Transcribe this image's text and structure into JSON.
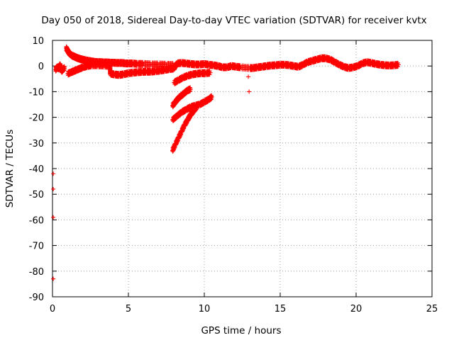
{
  "chart_data": {
    "type": "scatter",
    "title": "Day 050 of 2018, Sidereal Day-to-day VTEC variation (SDTVAR) for receiver kvtx",
    "xlabel": "GPS time / hours",
    "ylabel": "SDTVAR / TECUs",
    "xlim": [
      0,
      25
    ],
    "ylim": [
      -90,
      10
    ],
    "xticks": [
      0,
      5,
      10,
      15,
      20,
      25
    ],
    "yticks": [
      10,
      0,
      -10,
      -20,
      -30,
      -40,
      -50,
      -60,
      -70,
      -80,
      -90
    ],
    "grid": true,
    "marker": "plus",
    "color": "#ff0000",
    "series": [
      {
        "values": [
          [
            0.2,
            -1.5
          ],
          [
            0.3,
            -0.5
          ],
          [
            0.4,
            -1.0
          ],
          [
            0.5,
            0.5
          ],
          [
            0.6,
            -2.0
          ],
          [
            0.7,
            -1.2
          ],
          [
            0.8,
            -0.8
          ],
          [
            0.9,
            7.0
          ],
          [
            1.0,
            6.0
          ],
          [
            1.1,
            5.0
          ],
          [
            1.2,
            4.5
          ],
          [
            1.3,
            4.0
          ],
          [
            1.4,
            3.8
          ],
          [
            1.5,
            3.5
          ],
          [
            1.6,
            3.2
          ],
          [
            1.7,
            3.0
          ],
          [
            1.8,
            2.8
          ],
          [
            1.9,
            2.6
          ],
          [
            2.0,
            2.5
          ],
          [
            2.2,
            2.2
          ],
          [
            2.4,
            2.0
          ],
          [
            2.6,
            1.8
          ],
          [
            2.8,
            1.6
          ],
          [
            3.0,
            1.5
          ],
          [
            3.2,
            1.5
          ],
          [
            3.4,
            1.4
          ],
          [
            3.6,
            1.4
          ],
          [
            3.8,
            1.3
          ],
          [
            4.0,
            1.3
          ],
          [
            4.2,
            1.2
          ],
          [
            4.4,
            1.2
          ],
          [
            4.6,
            1.2
          ],
          [
            4.8,
            1.0
          ],
          [
            5.0,
            1.0
          ],
          [
            5.3,
            1.0
          ],
          [
            5.6,
            0.8
          ],
          [
            6.0,
            0.8
          ],
          [
            6.5,
            0.6
          ],
          [
            7.0,
            0.6
          ],
          [
            7.5,
            0.5
          ],
          [
            8.0,
            0.4
          ],
          [
            1.0,
            -3.0
          ],
          [
            1.2,
            -2.5
          ],
          [
            1.4,
            -2.0
          ],
          [
            1.6,
            -1.5
          ],
          [
            1.8,
            -1.0
          ],
          [
            2.0,
            -0.5
          ],
          [
            2.3,
            0
          ],
          [
            2.6,
            0.3
          ],
          [
            3.0,
            0.3
          ],
          [
            3.4,
            0.2
          ],
          [
            3.8,
            0.0
          ],
          [
            3.8,
            -3.0
          ],
          [
            4.1,
            -3.3
          ],
          [
            4.4,
            -3.5
          ],
          [
            4.7,
            -3.2
          ],
          [
            5.0,
            -2.8
          ],
          [
            5.3,
            -2.6
          ],
          [
            5.6,
            -2.4
          ],
          [
            5.9,
            -2.3
          ],
          [
            6.2,
            -2.2
          ],
          [
            6.5,
            -2.2
          ],
          [
            6.8,
            -2.0
          ],
          [
            7.1,
            -1.8
          ],
          [
            7.4,
            -1.5
          ],
          [
            7.7,
            -1.2
          ],
          [
            8.0,
            -1.0
          ],
          [
            8.2,
            1.0
          ],
          [
            8.5,
            1.2
          ],
          [
            8.8,
            1.0
          ],
          [
            9.1,
            0.8
          ],
          [
            9.4,
            0.6
          ],
          [
            9.7,
            0.6
          ],
          [
            10.0,
            0.8
          ],
          [
            10.3,
            0.5
          ],
          [
            10.6,
            0.3
          ],
          [
            10.9,
            0.0
          ],
          [
            11.2,
            -0.5
          ],
          [
            11.5,
            -0.5
          ],
          [
            11.8,
            0.0
          ],
          [
            12.1,
            -0.3
          ],
          [
            12.4,
            -0.5
          ],
          [
            13.0,
            -0.8
          ],
          [
            13.2,
            -0.8
          ],
          [
            13.5,
            -0.5
          ],
          [
            13.8,
            -0.3
          ],
          [
            14.1,
            0.0
          ],
          [
            14.4,
            0.2
          ],
          [
            14.7,
            0.3
          ],
          [
            15.0,
            0.5
          ],
          [
            15.3,
            0.5
          ],
          [
            15.6,
            0.3
          ],
          [
            15.9,
            0.0
          ],
          [
            16.2,
            -0.3
          ],
          [
            16.5,
            0.5
          ],
          [
            16.8,
            1.5
          ],
          [
            17.1,
            2.0
          ],
          [
            17.4,
            2.5
          ],
          [
            17.7,
            3.0
          ],
          [
            18.0,
            3.0
          ],
          [
            18.3,
            2.5
          ],
          [
            18.6,
            1.5
          ],
          [
            18.9,
            0.5
          ],
          [
            19.2,
            -0.3
          ],
          [
            19.5,
            -0.8
          ],
          [
            19.8,
            -0.5
          ],
          [
            20.1,
            0.0
          ],
          [
            20.4,
            1.0
          ],
          [
            20.7,
            1.5
          ],
          [
            21.0,
            1.2
          ],
          [
            21.3,
            0.8
          ],
          [
            21.6,
            0.5
          ],
          [
            21.9,
            0.3
          ],
          [
            22.2,
            0.2
          ],
          [
            22.5,
            0.3
          ],
          [
            22.8,
            0.5
          ],
          [
            8.0,
            -6.5
          ],
          [
            8.3,
            -5.5
          ],
          [
            8.6,
            -4.5
          ],
          [
            8.9,
            -3.8
          ],
          [
            9.2,
            -3.3
          ],
          [
            9.5,
            -3.0
          ],
          [
            9.8,
            -2.8
          ],
          [
            10.1,
            -2.8
          ],
          [
            10.4,
            -2.6
          ],
          [
            7.9,
            -15.5
          ],
          [
            8.1,
            -14.0
          ],
          [
            8.3,
            -12.5
          ],
          [
            8.5,
            -11.5
          ],
          [
            8.7,
            -10.5
          ],
          [
            8.9,
            -9.5
          ],
          [
            9.1,
            -9.0
          ],
          [
            7.9,
            -21.0
          ],
          [
            8.2,
            -19.5
          ],
          [
            8.5,
            -18.0
          ],
          [
            8.8,
            -17.0
          ],
          [
            9.1,
            -16.0
          ],
          [
            9.4,
            -15.5
          ],
          [
            9.7,
            -15.0
          ],
          [
            10.0,
            -14.0
          ],
          [
            10.3,
            -13.0
          ],
          [
            10.5,
            -12.0
          ],
          [
            7.9,
            -33.0
          ],
          [
            8.1,
            -30.5
          ],
          [
            8.3,
            -28.0
          ],
          [
            8.5,
            -25.5
          ],
          [
            8.7,
            -23.0
          ],
          [
            8.9,
            -21.0
          ],
          [
            9.1,
            -19.0
          ],
          [
            9.3,
            -17.5
          ],
          [
            9.5,
            -16.0
          ],
          [
            12.9,
            -4.2
          ],
          [
            12.95,
            -10.0
          ],
          [
            0.05,
            -42.0
          ],
          [
            0.05,
            -48.0
          ],
          [
            0.05,
            -59.0
          ],
          [
            0.05,
            -83.0
          ]
        ]
      }
    ]
  }
}
